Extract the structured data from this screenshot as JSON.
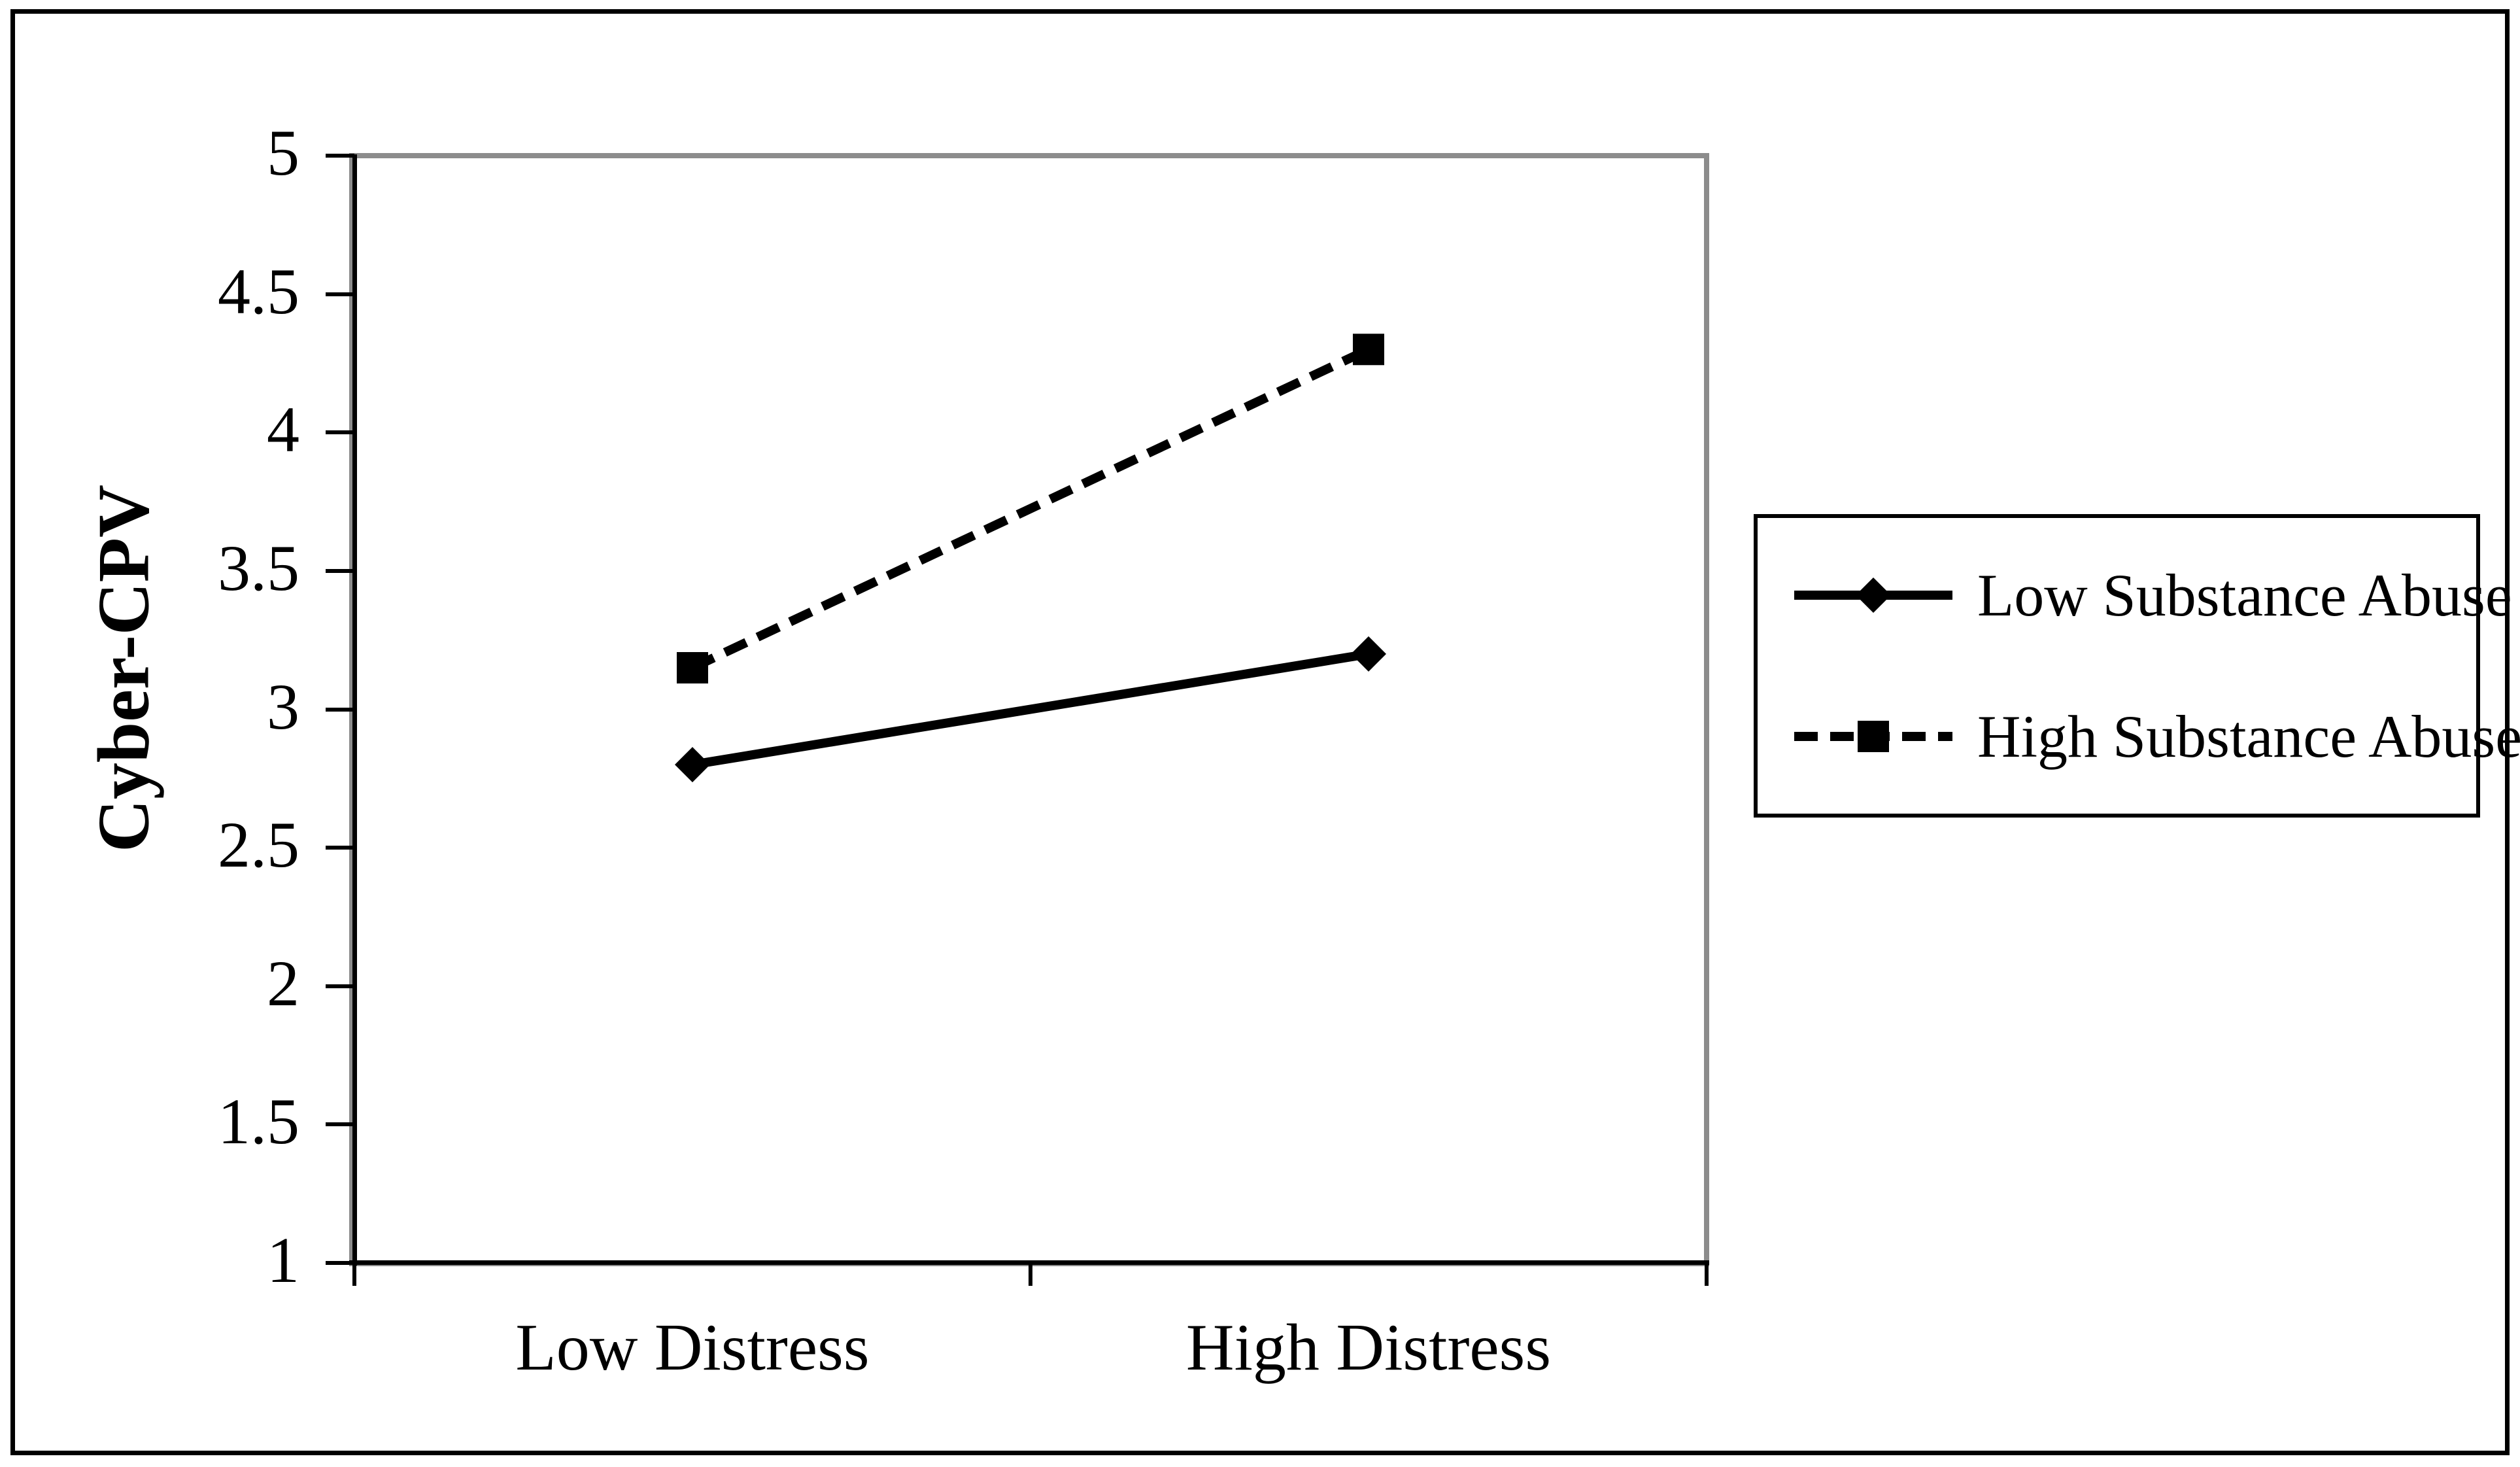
{
  "figure": {
    "background_color": "#ffffff",
    "border_color": "#000000"
  },
  "chart_data": {
    "type": "line",
    "title": "",
    "xlabel": "",
    "ylabel": "Cyber-CPV",
    "categories": [
      "Low Distress",
      "High Distress"
    ],
    "series": [
      {
        "name": "Low Substance Abuse",
        "values": [
          2.8,
          3.2
        ],
        "line_style": "solid",
        "marker": "diamond",
        "color": "#000000"
      },
      {
        "name": "High Substance Abuse",
        "values": [
          3.15,
          4.3
        ],
        "line_style": "dashed",
        "marker": "square",
        "color": "#000000"
      }
    ],
    "ylim": [
      1,
      5
    ],
    "ytick_step": 0.5,
    "yticks": [
      5,
      4.5,
      4,
      3.5,
      3,
      2.5,
      2,
      1.5,
      1
    ],
    "grid": false,
    "legend_position": "right",
    "plot_border_color": "#8c8c8c",
    "axis_color": "#000000"
  }
}
